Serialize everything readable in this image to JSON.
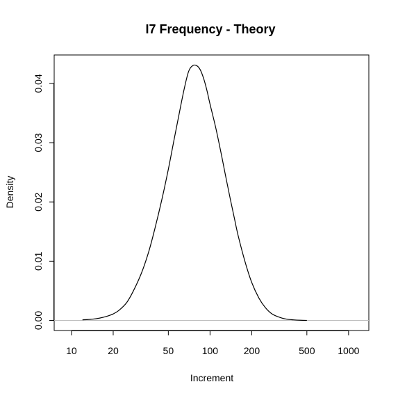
{
  "chart_data": {
    "type": "line",
    "title": "I7 Frequency - Theory",
    "xlabel": "Increment",
    "ylabel": "Density",
    "x_scale": "log",
    "xlim": [
      7.5,
      1400
    ],
    "ylim": [
      -0.0017,
      0.0448
    ],
    "x_ticks": [
      10,
      20,
      50,
      100,
      200,
      500,
      1000
    ],
    "x_tick_labels": [
      "10",
      "20",
      "50",
      "100",
      "200",
      "500",
      "1000"
    ],
    "y_ticks": [
      0.0,
      0.01,
      0.02,
      0.03,
      0.04
    ],
    "y_tick_labels": [
      "0.00",
      "0.01",
      "0.02",
      "0.03",
      "0.04"
    ],
    "baseline": 0,
    "baseline_color": "#bebebe",
    "line_color": "#000000",
    "grid": false,
    "legend": "none",
    "series": [
      {
        "x": [
          12,
          14,
          16,
          18,
          20,
          22,
          25,
          28,
          32,
          36,
          40,
          45,
          50,
          55,
          60,
          65,
          70,
          75,
          80,
          85,
          90,
          95,
          100,
          110,
          120,
          130,
          140,
          150,
          160,
          180,
          200,
          225,
          250,
          280,
          320,
          360,
          400,
          450,
          500
        ],
        "y": [
          0.0001,
          0.0002,
          0.0004,
          0.0007,
          0.0011,
          0.0017,
          0.003,
          0.005,
          0.008,
          0.0115,
          0.0155,
          0.0205,
          0.0255,
          0.0305,
          0.035,
          0.039,
          0.042,
          0.043,
          0.043,
          0.0423,
          0.0408,
          0.0388,
          0.0365,
          0.0325,
          0.0283,
          0.0242,
          0.0205,
          0.0172,
          0.0142,
          0.0097,
          0.0064,
          0.0038,
          0.0022,
          0.0011,
          0.0005,
          0.0002,
          0.0001,
          3e-05,
          0.0
        ]
      }
    ]
  }
}
